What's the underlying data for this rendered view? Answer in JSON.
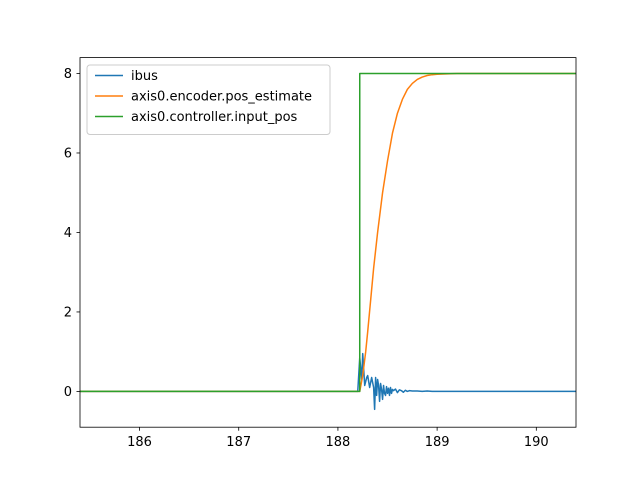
{
  "chart_data": {
    "type": "line",
    "title": "",
    "xlabel": "",
    "ylabel": "",
    "xlim": [
      185.4,
      190.4
    ],
    "ylim": [
      -0.9,
      8.4
    ],
    "xticks": [
      186,
      187,
      188,
      189,
      190
    ],
    "xtick_labels": [
      "186",
      "187",
      "188",
      "189",
      "190"
    ],
    "yticks": [
      0,
      2,
      4,
      6,
      8
    ],
    "ytick_labels": [
      "0",
      "2",
      "4",
      "6",
      "8"
    ],
    "grid": false,
    "legend_position": "top-left",
    "series": [
      {
        "name": "ibus",
        "color": "#1f77b4",
        "x": [
          185.4,
          188.2,
          188.22,
          188.24,
          188.25,
          188.27,
          188.29,
          188.3,
          188.32,
          188.34,
          188.36,
          188.37,
          188.38,
          188.39,
          188.4,
          188.41,
          188.42,
          188.43,
          188.44,
          188.45,
          188.46,
          188.47,
          188.48,
          188.49,
          188.5,
          188.51,
          188.52,
          188.53,
          188.54,
          188.55,
          188.56,
          188.58,
          188.6,
          188.62,
          188.64,
          188.66,
          188.68,
          188.7,
          188.72,
          188.75,
          188.8,
          188.85,
          188.9,
          188.95,
          189.0,
          189.2,
          190.4
        ],
        "values": [
          0,
          0,
          0.85,
          0.3,
          0.95,
          0.15,
          0.35,
          0.4,
          0.1,
          0.35,
          0.1,
          -0.45,
          0.35,
          -0.1,
          0.3,
          0.15,
          -0.25,
          0.2,
          0.05,
          -0.2,
          0.15,
          -0.05,
          -0.1,
          0.12,
          -0.05,
          0.08,
          -0.1,
          0.1,
          -0.05,
          0.05,
          0.02,
          0.06,
          -0.03,
          0.04,
          0.02,
          -0.02,
          0.03,
          0.0,
          0.02,
          0.01,
          0.01,
          0.0,
          0.01,
          0.0,
          0.0,
          0.0,
          0.0
        ]
      },
      {
        "name": "axis0.encoder.pos_estimate",
        "color": "#ff7f0e",
        "x": [
          185.4,
          188.22,
          188.25,
          188.28,
          188.3,
          188.33,
          188.36,
          188.4,
          188.45,
          188.5,
          188.55,
          188.6,
          188.65,
          188.7,
          188.75,
          188.8,
          188.85,
          188.9,
          188.95,
          189.0,
          189.1,
          189.2,
          189.4,
          190.4
        ],
        "values": [
          0,
          0,
          0.4,
          1.0,
          1.5,
          2.3,
          3.1,
          4.0,
          5.0,
          5.8,
          6.5,
          7.0,
          7.35,
          7.6,
          7.75,
          7.85,
          7.91,
          7.95,
          7.97,
          7.98,
          7.99,
          8.0,
          8.0,
          8.0
        ]
      },
      {
        "name": "axis0.controller.input_pos",
        "color": "#2ca02c",
        "x": [
          185.4,
          188.22,
          188.22,
          190.4
        ],
        "values": [
          0,
          0,
          8,
          8
        ]
      }
    ]
  }
}
